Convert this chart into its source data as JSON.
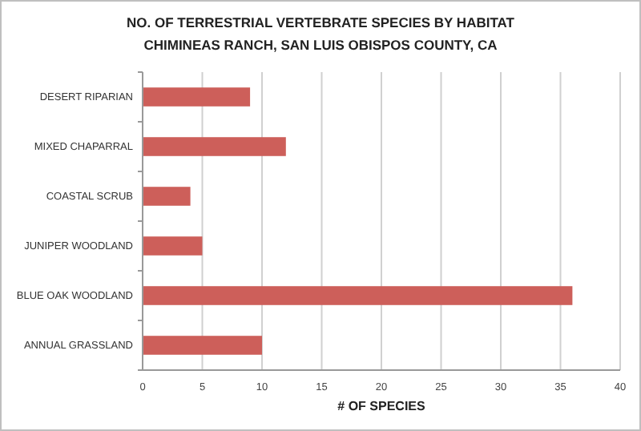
{
  "chart_data": {
    "type": "bar",
    "orientation": "horizontal",
    "title": "NO. OF TERRESTRIAL VERTEBRATE SPECIES BY HABITAT",
    "subtitle": "CHIMINEAS RANCH, SAN LUIS OBISPOS COUNTY, CA",
    "xlabel": "# OF SPECIES",
    "categories": [
      "DESERT RIPARIAN",
      "MIXED CHAPARRAL",
      "COASTAL SCRUB",
      "JUNIPER WOODLAND",
      "BLUE OAK WOODLAND",
      "ANNUAL GRASSLAND"
    ],
    "values": [
      9,
      12,
      4,
      5,
      36,
      10
    ],
    "color": "#cd5f5a",
    "xlim": [
      0,
      40
    ],
    "xticks": [
      0,
      5,
      10,
      15,
      20,
      25,
      30,
      35,
      40
    ],
    "grid": "x"
  }
}
